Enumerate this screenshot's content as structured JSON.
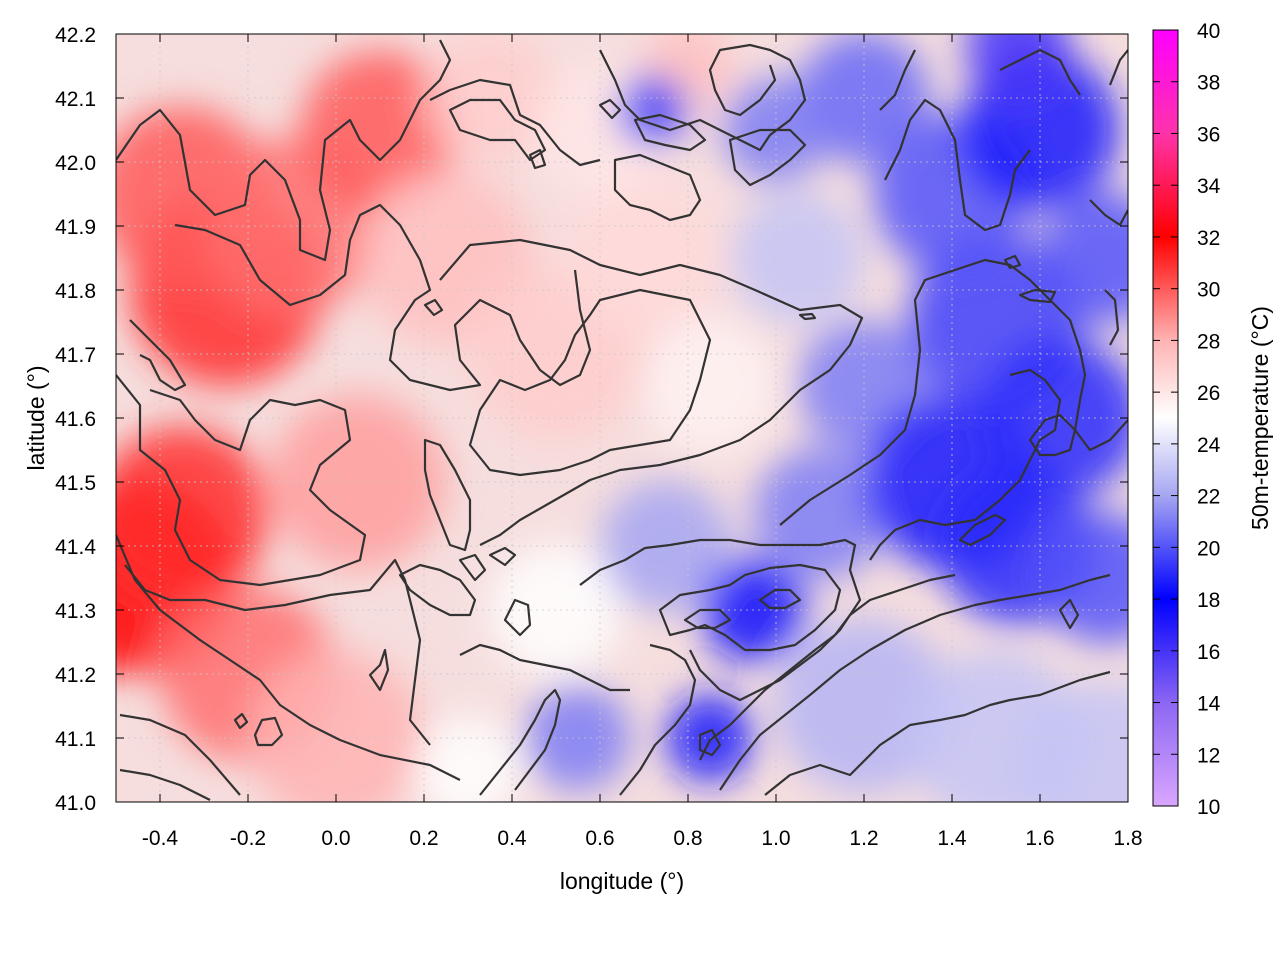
{
  "chart_data": {
    "type": "heatmap",
    "title": "",
    "xlabel": "longitude (°)",
    "ylabel": "latitude (°)",
    "colorbar_label": "50m-temperature (°C)",
    "xlim": [
      -0.5,
      1.8
    ],
    "ylim": [
      41.0,
      42.2
    ],
    "clim": [
      10,
      40
    ],
    "x_ticks": [
      "-0.4",
      "-0.2",
      "0.0",
      "0.2",
      "0.4",
      "0.6",
      "0.8",
      "1.0",
      "1.2",
      "1.4",
      "1.6",
      "1.8"
    ],
    "y_ticks": [
      "41.0",
      "41.1",
      "41.2",
      "41.3",
      "41.4",
      "41.5",
      "41.6",
      "41.7",
      "41.8",
      "41.9",
      "42.0",
      "42.1",
      "42.2"
    ],
    "colorbar_ticks": [
      "10",
      "12",
      "14",
      "16",
      "18",
      "20",
      "22",
      "24",
      "26",
      "28",
      "30",
      "32",
      "34",
      "36",
      "38",
      "40"
    ],
    "colormap": [
      {
        "t": 10,
        "color": "#d9a6ff"
      },
      {
        "t": 14,
        "color": "#8c66f2"
      },
      {
        "t": 18,
        "color": "#0000ff"
      },
      {
        "t": 22,
        "color": "#a6a6f2"
      },
      {
        "t": 25,
        "color": "#ffffff"
      },
      {
        "t": 28,
        "color": "#ffb3b3"
      },
      {
        "t": 32,
        "color": "#ff0000"
      },
      {
        "t": 36,
        "color": "#ff33aa"
      },
      {
        "t": 40,
        "color": "#ff00ff"
      }
    ],
    "grid": true,
    "contours": true,
    "approx_field": {
      "hot_west_max": 32,
      "cool_east_min": 17,
      "south_east_plain": 23
    }
  }
}
